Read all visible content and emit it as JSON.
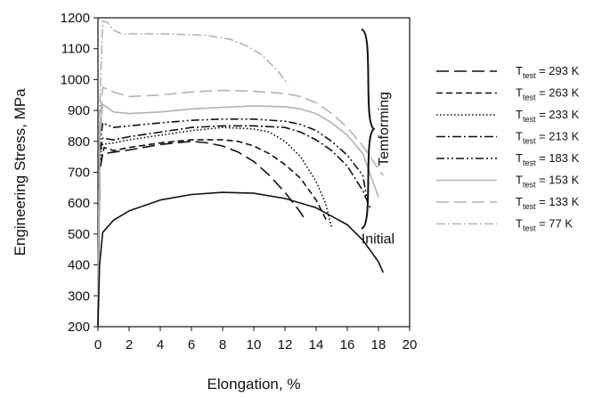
{
  "chart_data": {
    "type": "line",
    "xlabel": "Elongation, %",
    "ylabel": "Engineering Stress, MPa",
    "xlim": [
      0,
      20
    ],
    "ylim": [
      200,
      1200
    ],
    "xticks": [
      "0",
      "2",
      "4",
      "6",
      "8",
      "10",
      "12",
      "14",
      "16",
      "18",
      "20"
    ],
    "yticks": [
      "200",
      "300",
      "400",
      "500",
      "600",
      "700",
      "800",
      "900",
      "1000",
      "1100",
      "1200"
    ],
    "grid": false,
    "legend_position": "right",
    "annotations": {
      "group_label": "Temforming",
      "initial_label": "Initial"
    },
    "series": [
      {
        "name_main": "T",
        "name_sub": "test",
        "name_rest": "= 293 K",
        "color": "#111111",
        "dash": "long-dash",
        "points": [
          [
            0,
            200
          ],
          [
            0.1,
            700
          ],
          [
            0.3,
            760
          ],
          [
            1,
            765
          ],
          [
            2,
            772
          ],
          [
            4,
            790
          ],
          [
            6,
            800
          ],
          [
            7,
            795
          ],
          [
            8,
            785
          ],
          [
            9,
            765
          ],
          [
            10,
            735
          ],
          [
            11,
            690
          ],
          [
            12,
            635
          ],
          [
            13,
            570
          ],
          [
            13.3,
            545
          ]
        ]
      },
      {
        "name_main": "T",
        "name_sub": "test",
        "name_rest": "= 263 K",
        "color": "#111111",
        "dash": "dash",
        "points": [
          [
            0,
            200
          ],
          [
            0.1,
            720
          ],
          [
            0.4,
            780
          ],
          [
            1,
            770
          ],
          [
            2,
            780
          ],
          [
            4,
            795
          ],
          [
            6,
            805
          ],
          [
            8,
            805
          ],
          [
            9,
            800
          ],
          [
            10,
            785
          ],
          [
            11,
            760
          ],
          [
            12,
            725
          ],
          [
            13,
            680
          ],
          [
            14,
            610
          ],
          [
            14.7,
            540
          ]
        ]
      },
      {
        "name_main": "T",
        "name_sub": "test",
        "name_rest": "= 233 K",
        "color": "#111111",
        "dash": "dot",
        "points": [
          [
            0,
            200
          ],
          [
            0.1,
            740
          ],
          [
            0.3,
            790
          ],
          [
            1,
            795
          ],
          [
            2,
            805
          ],
          [
            4,
            820
          ],
          [
            6,
            835
          ],
          [
            8,
            845
          ],
          [
            10,
            840
          ],
          [
            11,
            830
          ],
          [
            12,
            800
          ],
          [
            13,
            750
          ],
          [
            14,
            670
          ],
          [
            14.6,
            600
          ],
          [
            15,
            520
          ]
        ]
      },
      {
        "name_main": "T",
        "name_sub": "test",
        "name_rest": "= 213 K",
        "color": "#111111",
        "dash": "dash-dot",
        "points": [
          [
            0,
            200
          ],
          [
            0.1,
            760
          ],
          [
            0.3,
            810
          ],
          [
            1,
            805
          ],
          [
            2,
            815
          ],
          [
            4,
            830
          ],
          [
            6,
            845
          ],
          [
            8,
            850
          ],
          [
            10,
            850
          ],
          [
            12,
            845
          ],
          [
            13,
            830
          ],
          [
            14,
            805
          ],
          [
            15,
            770
          ],
          [
            16,
            720
          ],
          [
            17,
            640
          ],
          [
            17.5,
            580
          ]
        ]
      },
      {
        "name_main": "T",
        "name_sub": "test",
        "name_rest": "= 183 K",
        "color": "#111111",
        "dash": "dash-dot-dot",
        "points": [
          [
            0,
            200
          ],
          [
            0.1,
            780
          ],
          [
            0.3,
            860
          ],
          [
            1,
            845
          ],
          [
            2,
            850
          ],
          [
            4,
            860
          ],
          [
            6,
            868
          ],
          [
            8,
            872
          ],
          [
            10,
            872
          ],
          [
            12,
            865
          ],
          [
            13,
            855
          ],
          [
            14,
            835
          ],
          [
            15,
            800
          ],
          [
            16,
            755
          ],
          [
            17,
            690
          ],
          [
            17.3,
            600
          ]
        ]
      },
      {
        "name_main": "T",
        "name_sub": "test",
        "name_rest": "= 153 K",
        "color": "#b3b3b3",
        "dash": "solid",
        "points": [
          [
            0,
            200
          ],
          [
            0.1,
            800
          ],
          [
            0.3,
            920
          ],
          [
            1,
            895
          ],
          [
            2,
            890
          ],
          [
            4,
            895
          ],
          [
            6,
            905
          ],
          [
            8,
            910
          ],
          [
            10,
            915
          ],
          [
            12,
            912
          ],
          [
            13,
            905
          ],
          [
            14,
            890
          ],
          [
            15,
            860
          ],
          [
            16,
            820
          ],
          [
            17,
            760
          ],
          [
            18,
            620
          ]
        ]
      },
      {
        "name_main": "T",
        "name_sub": "test",
        "name_rest": "= 133 K",
        "color": "#b3b3b3",
        "dash": "long-dash",
        "points": [
          [
            0,
            200
          ],
          [
            0.1,
            850
          ],
          [
            0.3,
            975
          ],
          [
            1,
            960
          ],
          [
            2,
            945
          ],
          [
            4,
            950
          ],
          [
            6,
            960
          ],
          [
            8,
            965
          ],
          [
            10,
            962
          ],
          [
            12,
            955
          ],
          [
            13,
            945
          ],
          [
            14,
            925
          ],
          [
            15,
            890
          ],
          [
            16,
            845
          ],
          [
            17,
            785
          ],
          [
            18,
            710
          ],
          [
            18.3,
            690
          ]
        ]
      },
      {
        "name_main": "T",
        "name_sub": "test",
        "name_rest": "= 77 K",
        "color": "#b3b3b3",
        "dash": "dash-dot",
        "points": [
          [
            0,
            200
          ],
          [
            0.1,
            900
          ],
          [
            0.3,
            1190
          ],
          [
            0.6,
            1185
          ],
          [
            1,
            1160
          ],
          [
            1.5,
            1148
          ],
          [
            3,
            1148
          ],
          [
            5,
            1147
          ],
          [
            7,
            1143
          ],
          [
            8.5,
            1130
          ],
          [
            9.5,
            1110
          ],
          [
            10.5,
            1080
          ],
          [
            11.5,
            1030
          ],
          [
            12.2,
            985
          ]
        ]
      },
      {
        "name_main": "Initial",
        "name_sub": "",
        "name_rest": "",
        "color": "#111111",
        "dash": "solid",
        "in_legend": false,
        "points": [
          [
            0,
            200
          ],
          [
            0.1,
            400
          ],
          [
            0.3,
            505
          ],
          [
            1,
            545
          ],
          [
            2,
            575
          ],
          [
            4,
            610
          ],
          [
            6,
            628
          ],
          [
            8,
            635
          ],
          [
            10,
            632
          ],
          [
            12,
            615
          ],
          [
            14,
            585
          ],
          [
            16,
            530
          ],
          [
            17,
            480
          ],
          [
            18,
            410
          ],
          [
            18.3,
            375
          ]
        ]
      }
    ]
  }
}
